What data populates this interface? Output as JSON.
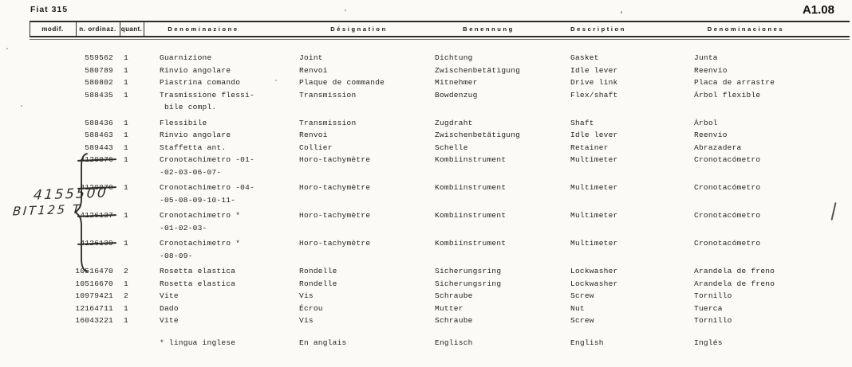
{
  "page": {
    "model_label": "Fiat 315",
    "page_code": "A1.08"
  },
  "table": {
    "headers": {
      "modif": "modif.",
      "ordinaz": "n. ordinaz.",
      "quant": "quant.",
      "it": "Denominazione",
      "fr": "Désignation",
      "de": "Benennung",
      "en": "Description",
      "es": "Denominaciones"
    },
    "rows": [
      {
        "num": "559562",
        "qty": "1",
        "it": [
          "Guarnizione"
        ],
        "fr": "Joint",
        "de": "Dichtung",
        "en": "Gasket",
        "es": "Junta"
      },
      {
        "num": "580789",
        "qty": "1",
        "it": [
          "Rinvio angolare"
        ],
        "fr": "Renvoi",
        "de": "Zwischenbetätigung",
        "en": "Idle lever",
        "es": "Reenvío"
      },
      {
        "num": "580802",
        "qty": "1",
        "it": [
          "Piastrina comando"
        ],
        "fr": "Plaque de commande",
        "de": "Mitnehmer",
        "en": "Drive link",
        "es": "Placa de arrastre"
      },
      {
        "num": "588435",
        "qty": "1",
        "it": [
          "Trasmissione flessi-",
          " bile compl."
        ],
        "fr": "Transmission",
        "de": "Bowdenzug",
        "en": "Flex/shaft",
        "es": "Árbol flexible"
      },
      {
        "num": "588436",
        "qty": "1",
        "gap": true,
        "it": [
          "Flessibile"
        ],
        "fr": "Transmission",
        "de": "Zugdraht",
        "en": "Shaft",
        "es": "Árbol"
      },
      {
        "num": "588463",
        "qty": "1",
        "it": [
          "Rinvio angolare"
        ],
        "fr": "Renvoi",
        "de": "Zwischenbetätigung",
        "en": "Idle lever",
        "es": "Reenvío"
      },
      {
        "num": "589443",
        "qty": "1",
        "it": [
          "Staffetta ant."
        ],
        "fr": "Collier",
        "de": "Schelle",
        "en": "Retainer",
        "es": "Abrazadera"
      },
      {
        "num": "4120076",
        "qty": "1",
        "struck": true,
        "it": [
          "Cronotachimetro -01-",
          "-02-03-06-07-"
        ],
        "fr": "Horo-tachymètre",
        "de": "Kombiinstrument",
        "en": "Multimeter",
        "es": "Cronotacómetro"
      },
      {
        "num": "4120078",
        "qty": "1",
        "struck": true,
        "gap": true,
        "it": [
          "Cronotachimetro -04-",
          "-05-08-09-10-11-"
        ],
        "fr": "Horo-tachymètre",
        "de": "Kombiinstrument",
        "en": "Multimeter",
        "es": "Cronotacómetro"
      },
      {
        "num": "4126137",
        "qty": "1",
        "struck": true,
        "gap": true,
        "it": [
          "Cronotachimetro *",
          "-01-02-03-"
        ],
        "fr": "Horo-tachymètre",
        "de": "Kombiinstrument",
        "en": "Multimeter",
        "es": "Cronotacómetro"
      },
      {
        "num": "4126139",
        "qty": "1",
        "struck": true,
        "gap": true,
        "it": [
          "Cronotachimetro *",
          "-08-09-"
        ],
        "fr": "Horo-tachymètre",
        "de": "Kombiinstrument",
        "en": "Multimeter",
        "es": "Cronotacómetro"
      },
      {
        "num": "10516470",
        "qty": "2",
        "gap": true,
        "it": [
          "Rosetta elastica"
        ],
        "fr": "Rondelle",
        "de": "Sicherungsring",
        "en": "Lockwasher",
        "es": "Arandela de freno"
      },
      {
        "num": "10516670",
        "qty": "1",
        "it": [
          "Rosetta elastica"
        ],
        "fr": "Rondelle",
        "de": "Sicherungsring",
        "en": "Lockwasher",
        "es": "Arandela de freno"
      },
      {
        "num": "10979421",
        "qty": "2",
        "it": [
          "Vite"
        ],
        "fr": "Vis",
        "de": "Schraube",
        "en": "Screw",
        "es": "Tornillo"
      },
      {
        "num": "12164711",
        "qty": "1",
        "it": [
          "Dado"
        ],
        "fr": "Écrou",
        "de": "Mutter",
        "en": "Nut",
        "es": "Tuerca"
      },
      {
        "num": "16043221",
        "qty": "1",
        "it": [
          "Vite"
        ],
        "fr": "Vis",
        "de": "Schraube",
        "en": "Screw",
        "es": "Tornillo"
      }
    ],
    "footnote": {
      "it": "* lingua inglese",
      "fr": "En anglais",
      "de": "Englisch",
      "en": "English",
      "es": "Inglés"
    }
  },
  "handwritten": {
    "line1": "4155500",
    "line2": "BIT125 T"
  }
}
